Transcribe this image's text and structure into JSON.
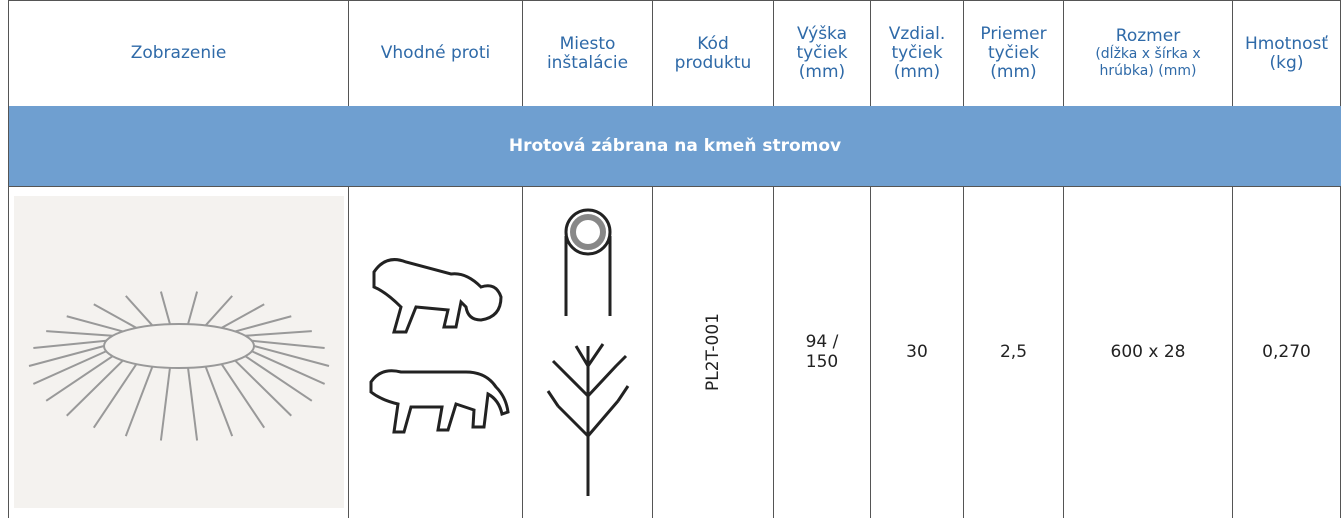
{
  "header": {
    "columns": [
      {
        "lines": [
          "Zobrazenie"
        ]
      },
      {
        "lines": [
          "Vhodné proti"
        ]
      },
      {
        "lines": [
          "Miesto",
          "inštalácie"
        ]
      },
      {
        "lines": [
          "Kód",
          "produktu"
        ]
      },
      {
        "lines": [
          "Výška",
          "tyčiek",
          "(mm)"
        ]
      },
      {
        "lines": [
          "Vzdial.",
          "tyčiek",
          "(mm)"
        ]
      },
      {
        "lines": [
          "Priemer",
          "tyčiek",
          "(mm)"
        ]
      },
      {
        "lines": [
          "Rozmer"
        ],
        "sub": [
          "(dĺžka x šírka x",
          "hrúbka) (mm)"
        ]
      },
      {
        "lines": [
          "Hmotnosť",
          "(kg)"
        ]
      }
    ]
  },
  "section": {
    "title": "Hrotová zábrana na kmeň stromov"
  },
  "row": {
    "code": "PL2T-001",
    "height": "94 / 150",
    "spacing": "30",
    "diameter": "2,5",
    "size": "600 x 28",
    "weight": "0,270"
  }
}
